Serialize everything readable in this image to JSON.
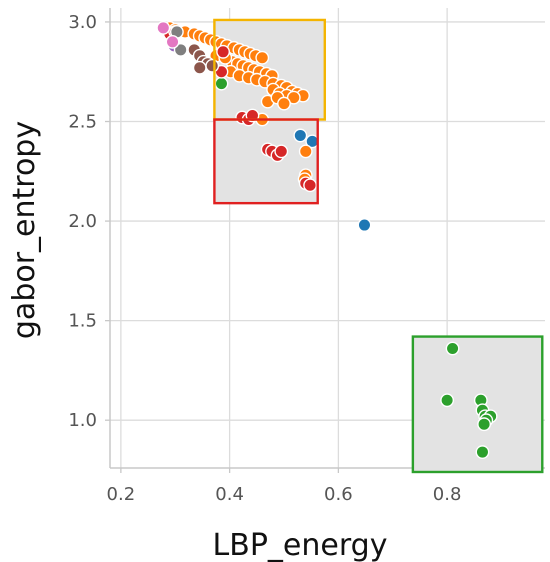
{
  "chart_data": {
    "type": "scatter",
    "xlabel": "LBP_energy",
    "ylabel": "gabor_entropy",
    "xlim": [
      0.18,
      0.98
    ],
    "ylim": [
      0.76,
      3.07
    ],
    "xticks": [
      "0.2",
      "0.4",
      "0.6",
      "0.8"
    ],
    "yticks": [
      "1.0",
      "1.5",
      "2.0",
      "2.5",
      "3.0"
    ],
    "grid": true,
    "series": [
      {
        "color": "#1f77b4",
        "points": [
          [
            0.648,
            1.98
          ],
          [
            0.53,
            2.43
          ],
          [
            0.552,
            2.4
          ]
        ]
      },
      {
        "color": "#ff7f0e",
        "points": [
          [
            0.29,
            2.97
          ],
          [
            0.3,
            2.96
          ],
          [
            0.318,
            2.95
          ],
          [
            0.335,
            2.94
          ],
          [
            0.345,
            2.93
          ],
          [
            0.355,
            2.92
          ],
          [
            0.365,
            2.91
          ],
          [
            0.375,
            2.9
          ],
          [
            0.385,
            2.89
          ],
          [
            0.395,
            2.88
          ],
          [
            0.408,
            2.87
          ],
          [
            0.418,
            2.86
          ],
          [
            0.428,
            2.85
          ],
          [
            0.438,
            2.84
          ],
          [
            0.448,
            2.83
          ],
          [
            0.46,
            2.82
          ],
          [
            0.405,
            2.8
          ],
          [
            0.415,
            2.79
          ],
          [
            0.425,
            2.78
          ],
          [
            0.435,
            2.77
          ],
          [
            0.445,
            2.76
          ],
          [
            0.455,
            2.75
          ],
          [
            0.468,
            2.74
          ],
          [
            0.478,
            2.73
          ],
          [
            0.375,
            2.83
          ],
          [
            0.392,
            2.82
          ],
          [
            0.402,
            2.75
          ],
          [
            0.418,
            2.73
          ],
          [
            0.435,
            2.72
          ],
          [
            0.45,
            2.71
          ],
          [
            0.465,
            2.7
          ],
          [
            0.48,
            2.69
          ],
          [
            0.495,
            2.68
          ],
          [
            0.505,
            2.67
          ],
          [
            0.515,
            2.65
          ],
          [
            0.525,
            2.64
          ],
          [
            0.535,
            2.63
          ],
          [
            0.48,
            2.66
          ],
          [
            0.492,
            2.64
          ],
          [
            0.505,
            2.63
          ],
          [
            0.518,
            2.62
          ],
          [
            0.47,
            2.6
          ],
          [
            0.488,
            2.62
          ],
          [
            0.5,
            2.59
          ],
          [
            0.54,
            2.35
          ],
          [
            0.54,
            2.23
          ],
          [
            0.538,
            2.21
          ],
          [
            0.46,
            2.51
          ]
        ]
      },
      {
        "color": "#2ca02c",
        "points": [
          [
            0.385,
            2.69
          ],
          [
            0.81,
            1.36
          ],
          [
            0.8,
            1.1
          ],
          [
            0.862,
            1.1
          ],
          [
            0.865,
            1.05
          ],
          [
            0.87,
            1.02
          ],
          [
            0.88,
            1.02
          ],
          [
            0.872,
            1.0
          ],
          [
            0.868,
            0.98
          ],
          [
            0.865,
            0.84
          ]
        ]
      },
      {
        "color": "#d62728",
        "points": [
          [
            0.29,
            2.94
          ],
          [
            0.3,
            2.95
          ],
          [
            0.388,
            2.85
          ],
          [
            0.385,
            2.75
          ],
          [
            0.423,
            2.52
          ],
          [
            0.435,
            2.51
          ],
          [
            0.442,
            2.53
          ],
          [
            0.47,
            2.36
          ],
          [
            0.478,
            2.35
          ],
          [
            0.488,
            2.33
          ],
          [
            0.495,
            2.35
          ],
          [
            0.54,
            2.19
          ],
          [
            0.548,
            2.18
          ]
        ]
      },
      {
        "color": "#9467bd",
        "points": [
          [
            0.298,
            2.88
          ]
        ]
      },
      {
        "color": "#8c564b",
        "points": [
          [
            0.335,
            2.86
          ],
          [
            0.345,
            2.83
          ],
          [
            0.352,
            2.8
          ],
          [
            0.36,
            2.79
          ],
          [
            0.368,
            2.78
          ],
          [
            0.345,
            2.77
          ]
        ]
      },
      {
        "color": "#7f7f7f",
        "points": [
          [
            0.303,
            2.95
          ],
          [
            0.31,
            2.86
          ]
        ]
      },
      {
        "color": "#e377c2",
        "points": [
          [
            0.278,
            2.97
          ],
          [
            0.295,
            2.9
          ]
        ]
      }
    ],
    "highlight_boxes": [
      {
        "color": "#f4b400",
        "x": [
          0.372,
          0.575
        ],
        "y": [
          2.51,
          3.01
        ]
      },
      {
        "color": "#e02020",
        "x": [
          0.372,
          0.562
        ],
        "y": [
          2.09,
          2.51
        ]
      },
      {
        "color": "#2ca02c",
        "x": [
          0.737,
          0.975
        ],
        "y": [
          0.74,
          1.42
        ]
      }
    ]
  }
}
